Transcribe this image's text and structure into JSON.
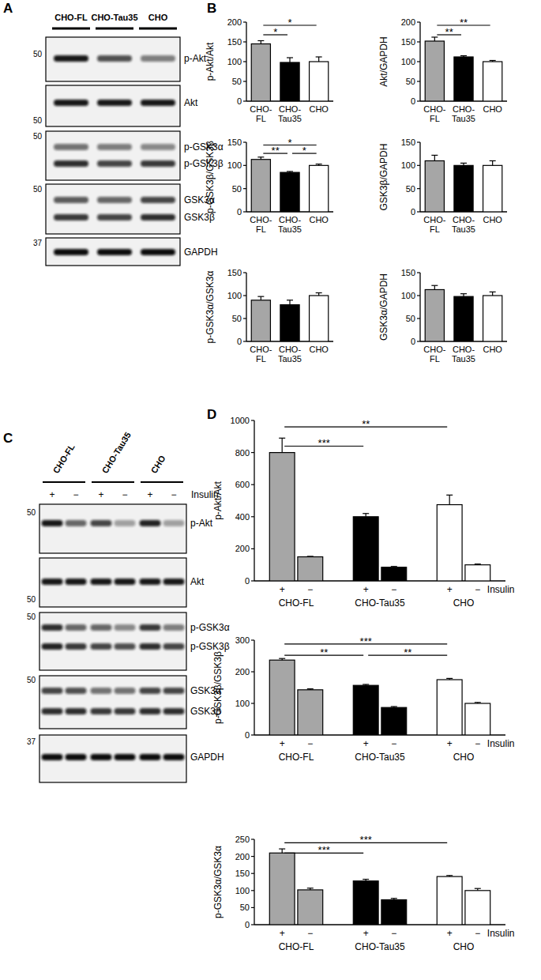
{
  "panel_labels": [
    "A",
    "B",
    "C",
    "D"
  ],
  "blots": [
    {
      "lanes": [
        "CHO-FL",
        "CHO-Tau35",
        "CHO"
      ],
      "rows": [
        {
          "labels": [
            "p-Akt"
          ],
          "marker": 50
        },
        {
          "labels": [
            "Akt"
          ],
          "marker": 50
        },
        {
          "labels": [
            "p-GSK3α",
            "p-GSK3β"
          ],
          "marker": 50
        },
        {
          "labels": [
            "GSK3α",
            "GSK3β"
          ],
          "marker": 50
        },
        {
          "labels": [
            "GAPDH"
          ],
          "marker": 37
        }
      ]
    },
    {
      "lanes": [
        "CHO-FL",
        "CHO-Tau35",
        "CHO"
      ],
      "treatment_label": "Insulin",
      "treatments": [
        "+",
        "−",
        "+",
        "−",
        "+",
        "−"
      ],
      "rows": [
        {
          "labels": [
            "p-Akt"
          ],
          "marker": 50
        },
        {
          "labels": [
            "Akt"
          ],
          "marker": 50
        },
        {
          "labels": [
            "p-GSK3α",
            "p-GSK3β"
          ],
          "marker": 50
        },
        {
          "labels": [
            "GSK3α",
            "GSK3β"
          ],
          "marker": 50
        },
        {
          "labels": [
            "GAPDH"
          ],
          "marker": 37
        }
      ]
    }
  ],
  "chart_data": [
    {
      "type": "bar",
      "ylabel": "p-Akt/Akt",
      "categories": [
        "CHO-FL",
        "CHO-Tau35",
        "CHO"
      ],
      "values": [
        145,
        98,
        100
      ],
      "errors": [
        8,
        12,
        12
      ],
      "colors": [
        "#a6a6a6",
        "#000000",
        "#ffffff"
      ],
      "ylim": [
        0,
        200
      ],
      "yticks": [
        0,
        50,
        100,
        150,
        200
      ],
      "annotations": [
        {
          "label": "*",
          "from": 0,
          "to": 1
        },
        {
          "label": "*",
          "from": 0,
          "to": 2
        }
      ]
    },
    {
      "type": "bar",
      "ylabel": "Akt/GAPDH",
      "categories": [
        "CHO-FL",
        "CHO-Tau35",
        "CHO"
      ],
      "values": [
        152,
        112,
        100
      ],
      "errors": [
        10,
        3,
        3
      ],
      "colors": [
        "#a6a6a6",
        "#000000",
        "#ffffff"
      ],
      "ylim": [
        0,
        200
      ],
      "yticks": [
        0,
        50,
        100,
        150,
        200
      ],
      "annotations": [
        {
          "label": "**",
          "from": 0,
          "to": 1
        },
        {
          "label": "**",
          "from": 0,
          "to": 2
        }
      ]
    },
    {
      "type": "bar",
      "ylabel": "p-GSK3β/GSK3β",
      "categories": [
        "CHO-FL",
        "CHO-Tau35",
        "CHO"
      ],
      "values": [
        113,
        85,
        100
      ],
      "errors": [
        5,
        2,
        3
      ],
      "colors": [
        "#a6a6a6",
        "#000000",
        "#ffffff"
      ],
      "ylim": [
        0,
        150
      ],
      "yticks": [
        0,
        50,
        100,
        150
      ],
      "annotations": [
        {
          "label": "**",
          "from": 0,
          "to": 1
        },
        {
          "label": "*",
          "from": 1,
          "to": 2
        },
        {
          "label": "*",
          "from": 0,
          "to": 2
        }
      ]
    },
    {
      "type": "bar",
      "ylabel": "GSK3β/GAPDH",
      "categories": [
        "CHO-FL",
        "CHO-Tau35",
        "CHO"
      ],
      "values": [
        110,
        100,
        100
      ],
      "errors": [
        12,
        5,
        10
      ],
      "colors": [
        "#a6a6a6",
        "#000000",
        "#ffffff"
      ],
      "ylim": [
        0,
        150
      ],
      "yticks": [
        0,
        50,
        100,
        150
      ]
    },
    {
      "type": "bar",
      "ylabel": "p-GSK3α/GSK3α",
      "categories": [
        "CHO-FL",
        "CHO-Tau35",
        "CHO"
      ],
      "values": [
        90,
        80,
        100
      ],
      "errors": [
        8,
        10,
        6
      ],
      "colors": [
        "#a6a6a6",
        "#000000",
        "#ffffff"
      ],
      "ylim": [
        0,
        150
      ],
      "yticks": [
        0,
        50,
        100,
        150
      ]
    },
    {
      "type": "bar",
      "ylabel": "GSK3α/GAPDH",
      "categories": [
        "CHO-FL",
        "CHO-Tau35",
        "CHO"
      ],
      "values": [
        113,
        98,
        100
      ],
      "errors": [
        9,
        6,
        8
      ],
      "colors": [
        "#a6a6a6",
        "#000000",
        "#ffffff"
      ],
      "ylim": [
        0,
        150
      ],
      "yticks": [
        0,
        50,
        100,
        150
      ]
    },
    {
      "type": "bar",
      "ylabel": "p-Akt/Akt",
      "categories": [
        "+",
        "−",
        "+",
        "−",
        "+",
        "−"
      ],
      "groups": [
        "CHO-FL",
        "CHO-Tau35",
        "CHO"
      ],
      "xlabel": "Insulin",
      "values": [
        800,
        150,
        400,
        85,
        475,
        100
      ],
      "errors": [
        90,
        3,
        20,
        5,
        60,
        5
      ],
      "colors": [
        "#a6a6a6",
        "#a6a6a6",
        "#000000",
        "#000000",
        "#ffffff",
        "#ffffff"
      ],
      "ylim": [
        0,
        1000
      ],
      "yticks": [
        0,
        200,
        400,
        600,
        800,
        1000
      ],
      "annotations": [
        {
          "label": "***",
          "from": 0,
          "to": 2
        },
        {
          "label": "**",
          "from": 0,
          "to": 4
        }
      ]
    },
    {
      "type": "bar",
      "ylabel": "p-GSK3β/GSK3β",
      "categories": [
        "+",
        "−",
        "+",
        "−",
        "+",
        "−"
      ],
      "groups": [
        "CHO-FL",
        "CHO-Tau35",
        "CHO"
      ],
      "xlabel": "Insulin",
      "values": [
        237,
        143,
        157,
        87,
        175,
        100
      ],
      "errors": [
        5,
        3,
        3,
        3,
        4,
        3
      ],
      "colors": [
        "#a6a6a6",
        "#a6a6a6",
        "#000000",
        "#000000",
        "#ffffff",
        "#ffffff"
      ],
      "ylim": [
        0,
        300
      ],
      "yticks": [
        0,
        100,
        200,
        300
      ],
      "annotations": [
        {
          "label": "**",
          "from": 0,
          "to": 2
        },
        {
          "label": "**",
          "from": 2,
          "to": 4
        },
        {
          "label": "***",
          "from": 0,
          "to": 4
        }
      ]
    },
    {
      "type": "bar",
      "ylabel": "p-GSK3α/GSK3α",
      "categories": [
        "+",
        "−",
        "+",
        "−",
        "+",
        "−"
      ],
      "groups": [
        "CHO-FL",
        "CHO-Tau35",
        "CHO"
      ],
      "xlabel": "Insulin",
      "values": [
        210,
        102,
        128,
        73,
        141,
        100
      ],
      "errors": [
        12,
        5,
        5,
        4,
        3,
        6
      ],
      "colors": [
        "#a6a6a6",
        "#a6a6a6",
        "#000000",
        "#000000",
        "#ffffff",
        "#ffffff"
      ],
      "ylim": [
        0,
        250
      ],
      "yticks": [
        0,
        50,
        100,
        150,
        200,
        250
      ],
      "annotations": [
        {
          "label": "***",
          "from": 0,
          "to": 2
        },
        {
          "label": "***",
          "from": 0,
          "to": 4
        }
      ]
    }
  ]
}
